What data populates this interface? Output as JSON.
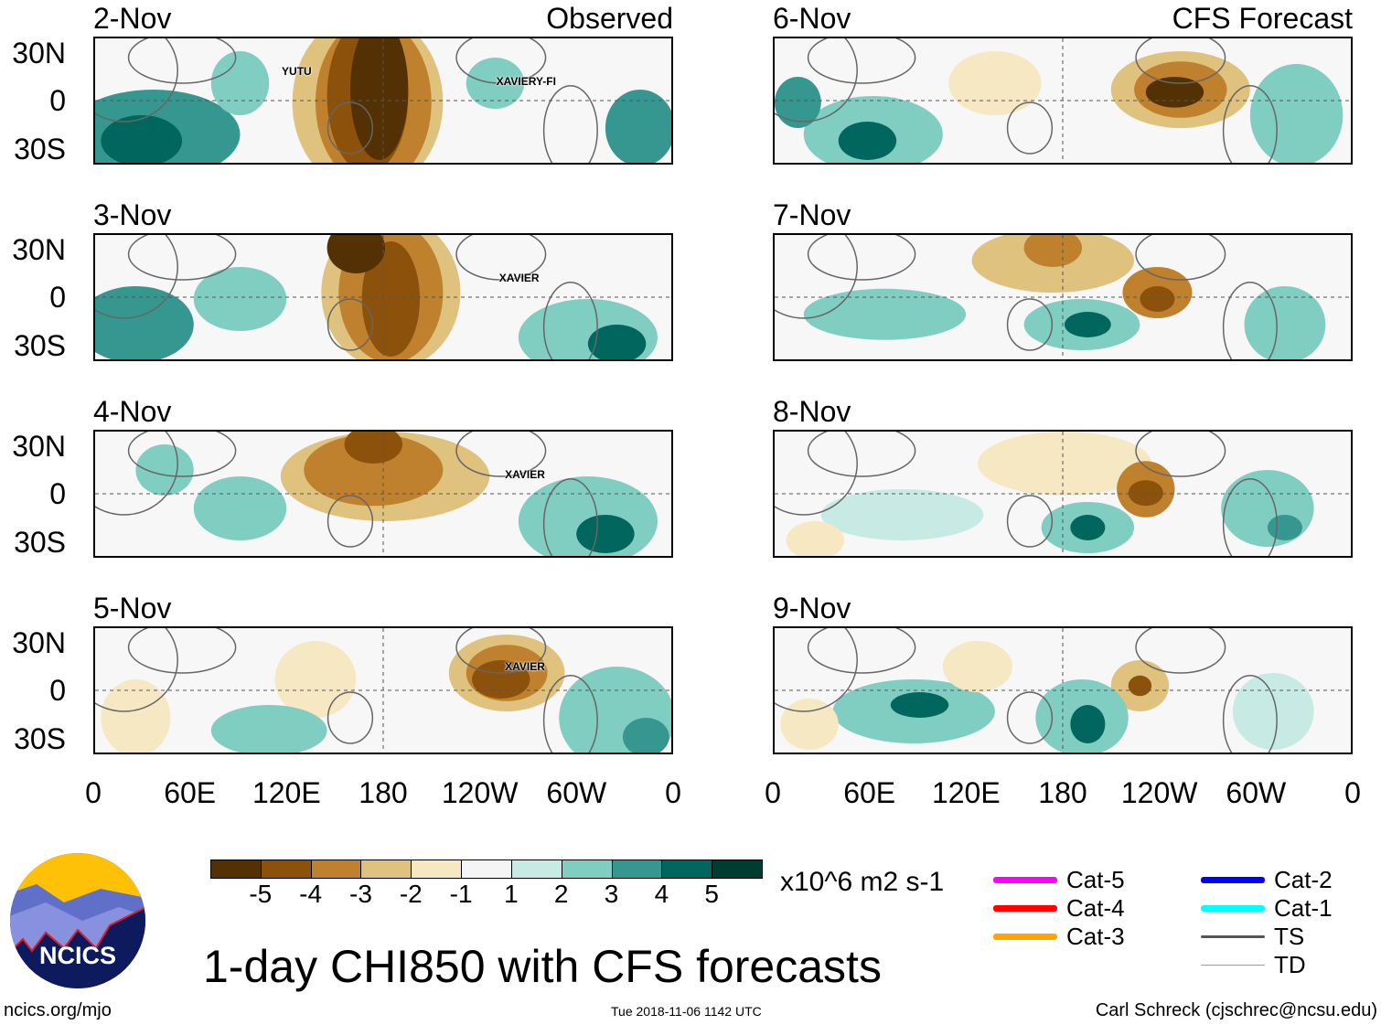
{
  "headers": {
    "observed": "Observed",
    "forecast": "CFS Forecast"
  },
  "panels": [
    {
      "date": "2-Nov",
      "storms": [
        "YUTU",
        "XAVIERY-FI"
      ]
    },
    {
      "date": "3-Nov",
      "storms": [
        "XAVIER"
      ]
    },
    {
      "date": "4-Nov",
      "storms": [
        "XAVIER"
      ]
    },
    {
      "date": "5-Nov",
      "storms": [
        "XAVIER"
      ]
    },
    {
      "date": "6-Nov",
      "storms": []
    },
    {
      "date": "7-Nov",
      "storms": []
    },
    {
      "date": "8-Nov",
      "storms": []
    },
    {
      "date": "9-Nov",
      "storms": []
    }
  ],
  "lat_labels": [
    "30N",
    "0",
    "30S"
  ],
  "lon_labels": [
    "0",
    "60E",
    "120E",
    "180",
    "120W",
    "60W",
    "0"
  ],
  "colorbar": {
    "labels": [
      "-5",
      "-4",
      "-3",
      "-2",
      "-1",
      "1",
      "2",
      "3",
      "4",
      "5"
    ],
    "colors": [
      "#543005",
      "#8c510a",
      "#bf812d",
      "#dfc27d",
      "#f6e8c3",
      "#f5f5f5",
      "#c7eae5",
      "#80cdc1",
      "#35978f",
      "#01665e",
      "#003c30"
    ],
    "units": "x10^6 m2 s-1"
  },
  "legend": [
    {
      "label": "Cat-5",
      "color": "#ff00ff"
    },
    {
      "label": "Cat-4",
      "color": "#ff0000"
    },
    {
      "label": "Cat-3",
      "color": "#ffa500"
    },
    {
      "label": "Cat-2",
      "color": "#0000ff"
    },
    {
      "label": "Cat-1",
      "color": "#00ffff"
    },
    {
      "label": "TS",
      "color": "#555555"
    },
    {
      "label": "TD",
      "color": "#999999"
    }
  ],
  "title": "1-day CHI850 with CFS forecasts",
  "logo_text": "NCICS",
  "footer": {
    "left": "ncics.org/mjo",
    "center": "Tue 2018-11-06 1142 UTC",
    "right": "Carl Schreck (cjschrec@ncsu.edu)"
  }
}
